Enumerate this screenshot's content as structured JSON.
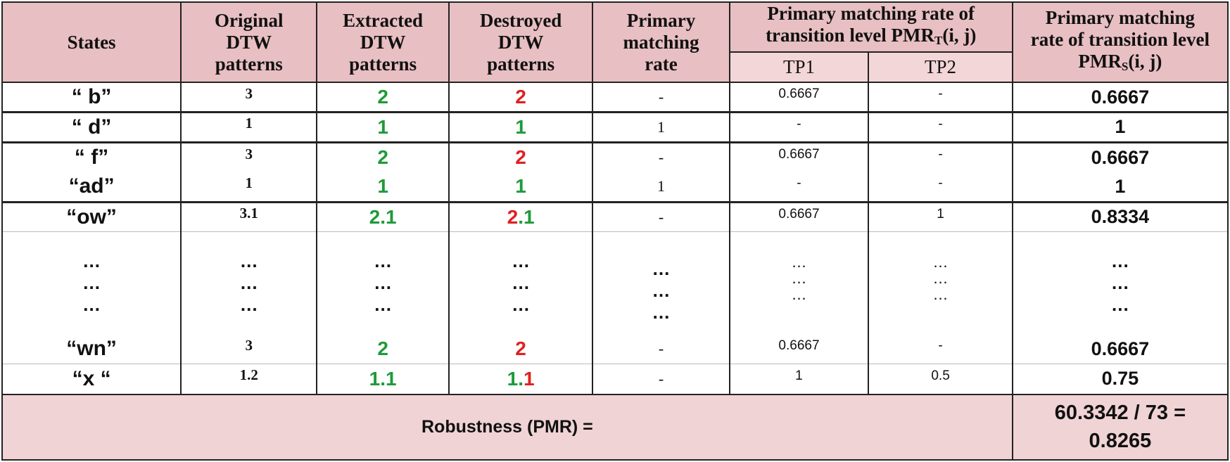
{
  "headers": {
    "states": "States",
    "original": "Original DTW patterns",
    "extracted": "Extracted DTW patterns",
    "destroyed": "Destroyed DTW patterns",
    "primary": "Primary matching rate",
    "pmrt_top": "Primary matching rate of",
    "pmrt_mid": "transition level PMR",
    "pmrt_sub": "T",
    "pmrt_args": "(i, j)",
    "tp1": "TP1",
    "tp2": "TP2",
    "pmrs_l1": "Primary matching",
    "pmrs_l2": "rate of transition level",
    "pmrs_l3": "PMR",
    "pmrs_sub": "S",
    "pmrs_args": "(i, j)"
  },
  "rows": [
    {
      "state": "“ b”",
      "original": "3",
      "extracted": "2",
      "destroyed": "2",
      "destroyed_color": "red",
      "primary": "-",
      "tp1": "0.6667",
      "tp2": "-",
      "pmrs": "0.6667"
    },
    {
      "state": "“ d”",
      "original": "1",
      "extracted": "1",
      "destroyed": "1",
      "destroyed_color": "green",
      "primary": "1",
      "tp1": "-",
      "tp2": "-",
      "pmrs": "1"
    },
    {
      "state": "“ f”",
      "original": "3",
      "extracted": "2",
      "destroyed": "2",
      "destroyed_color": "red",
      "primary": "-",
      "tp1": "0.6667",
      "tp2": "-",
      "pmrs": "0.6667"
    },
    {
      "state": "“ad”",
      "original": "1",
      "extracted": "1",
      "destroyed": "1",
      "destroyed_color": "green",
      "primary": "1",
      "tp1": "-",
      "tp2": "-",
      "pmrs": "1"
    },
    {
      "state": "“ow”",
      "original": "3.1",
      "extracted": "2.1",
      "destroyed_a": "2",
      "destroyed_b": ".1",
      "primary": "-",
      "tp1": "0.6667",
      "tp2": "1",
      "pmrs": "0.8334"
    },
    {
      "state": "“wn”",
      "original": "3",
      "extracted": "2",
      "destroyed": "2",
      "destroyed_color": "red",
      "primary": "-",
      "tp1": "0.6667",
      "tp2": "-",
      "pmrs": "0.6667"
    },
    {
      "state": "“x “",
      "original": "1.2",
      "extracted": "1.1",
      "destroyed_a": "1.",
      "destroyed_b": "1",
      "primary": "-",
      "tp1": "1",
      "tp2": "0.5",
      "pmrs": "0.75"
    }
  ],
  "ellipsis": "…\n…\n…",
  "ellipsis_two": "…\n…",
  "footer": {
    "label": "Robustness (PMR) =",
    "value_l1": "60.3342 / 73 =",
    "value_l2": "0.8265"
  }
}
